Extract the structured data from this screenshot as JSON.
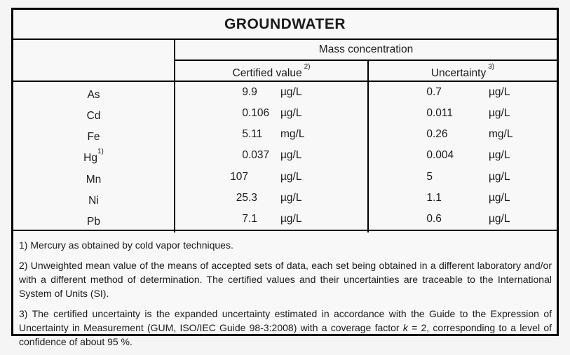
{
  "title": "GROUNDWATER",
  "table": {
    "group_header": "Mass concentration",
    "columns": {
      "certified_label": "Certified value",
      "certified_sup": "2)",
      "uncertainty_label": "Uncertainty",
      "uncertainty_sup": "3)"
    },
    "rows": [
      {
        "element": "As",
        "element_sup": "",
        "cert_int": "9",
        "cert_frac": ".9",
        "cert_unit": "µg/L",
        "unc_int": "0",
        "unc_frac": ".7",
        "unc_unit": "µg/L"
      },
      {
        "element": "Cd",
        "element_sup": "",
        "cert_int": "0",
        "cert_frac": ".106",
        "cert_unit": "µg/L",
        "unc_int": "0",
        "unc_frac": ".011",
        "unc_unit": "µg/L"
      },
      {
        "element": "Fe",
        "element_sup": "",
        "cert_int": "5",
        "cert_frac": ".11",
        "cert_unit": "mg/L",
        "unc_int": "0",
        "unc_frac": ".26",
        "unc_unit": "mg/L"
      },
      {
        "element": "Hg",
        "element_sup": "1)",
        "cert_int": "0",
        "cert_frac": ".037",
        "cert_unit": "µg/L",
        "unc_int": "0",
        "unc_frac": ".004",
        "unc_unit": "µg/L"
      },
      {
        "element": "Mn",
        "element_sup": "",
        "cert_int": "107",
        "cert_frac": "",
        "cert_unit": "µg/L",
        "unc_int": "5",
        "unc_frac": "",
        "unc_unit": "µg/L"
      },
      {
        "element": "Ni",
        "element_sup": "",
        "cert_int": "25",
        "cert_frac": ".3",
        "cert_unit": "µg/L",
        "unc_int": "1",
        "unc_frac": ".1",
        "unc_unit": "µg/L"
      },
      {
        "element": "Pb",
        "element_sup": "",
        "cert_int": "7",
        "cert_frac": ".1",
        "cert_unit": "µg/L",
        "unc_int": "0",
        "unc_frac": ".6",
        "unc_unit": "µg/L"
      }
    ]
  },
  "footnotes": {
    "f1": "1) Mercury as obtained by cold vapor techniques.",
    "f2": "2) Unweighted mean value of the means of accepted sets of data, each set being obtained in a different laboratory and/or with a different method of determination. The certified values and their uncertainties are traceable to the International System of Units (SI).",
    "f3_pre": "3) The certified uncertainty is the expanded uncertainty estimated in accordance with the Guide to the Expression of Uncertainty in Measurement (GUM, ISO/IEC Guide 98-3:2008) with a coverage factor ",
    "f3_italic": "k",
    "f3_post": " = 2, corresponding to a level of confidence of about 95 %."
  },
  "colors": {
    "border": "#000000",
    "text": "#1b1b1b",
    "table_bg": "#f8f8f8",
    "page_bg": "#f5f5f5"
  }
}
